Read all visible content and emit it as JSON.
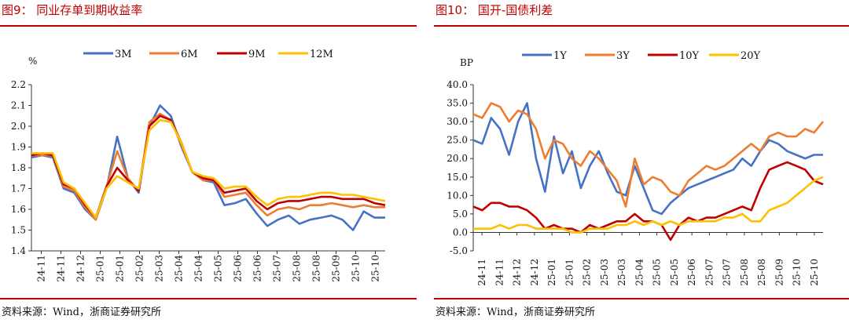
{
  "colors": {
    "accent": "#c00000",
    "s1": "#4472c4",
    "s2": "#ed7d31",
    "s3": "#c00000",
    "s4": "#ffc000"
  },
  "left": {
    "title": "图9： 同业存单到期收益率",
    "source": "资料来源：Wind，浙商证券研究所",
    "chart_data": {
      "type": "line",
      "unit": "%",
      "ylim": [
        1.4,
        2.2
      ],
      "yticks": [
        1.4,
        1.5,
        1.6,
        1.7,
        1.8,
        1.9,
        2.0,
        2.1,
        2.2
      ],
      "ytick_labels": [
        "1.4",
        "1.5",
        "1.6",
        "1.7",
        "1.8",
        "1.9",
        "2.0",
        "2.1",
        "2.2"
      ],
      "x_labels": [
        "24-11",
        "24-11",
        "24-12",
        "25-01",
        "25-01",
        "25-02",
        "25-03",
        "25-04",
        "25-04",
        "25-05",
        "25-06",
        "25-06",
        "25-07",
        "25-08",
        "25-08",
        "25-09",
        "25-10",
        "25-10"
      ],
      "series": [
        {
          "name": "3M",
          "color": "#4472c4",
          "values": [
            1.85,
            1.86,
            1.85,
            1.7,
            1.68,
            1.6,
            1.55,
            1.7,
            1.95,
            1.75,
            1.68,
            2.0,
            2.1,
            2.05,
            1.9,
            1.78,
            1.74,
            1.73,
            1.62,
            1.63,
            1.65,
            1.58,
            1.52,
            1.55,
            1.57,
            1.53,
            1.55,
            1.56,
            1.57,
            1.55,
            1.5,
            1.59,
            1.56,
            1.56
          ]
        },
        {
          "name": "6M",
          "color": "#ed7d31",
          "values": [
            1.86,
            1.86,
            1.86,
            1.71,
            1.69,
            1.61,
            1.55,
            1.71,
            1.88,
            1.75,
            1.69,
            2.02,
            2.06,
            2.03,
            1.91,
            1.78,
            1.74,
            1.74,
            1.66,
            1.67,
            1.68,
            1.62,
            1.57,
            1.6,
            1.61,
            1.6,
            1.62,
            1.62,
            1.63,
            1.62,
            1.61,
            1.62,
            1.61,
            1.61
          ]
        },
        {
          "name": "9M",
          "color": "#c00000",
          "values": [
            1.86,
            1.87,
            1.86,
            1.72,
            1.7,
            1.62,
            1.56,
            1.71,
            1.8,
            1.74,
            1.69,
            2.0,
            2.05,
            2.03,
            1.92,
            1.78,
            1.75,
            1.74,
            1.68,
            1.69,
            1.7,
            1.64,
            1.6,
            1.63,
            1.64,
            1.64,
            1.65,
            1.66,
            1.66,
            1.65,
            1.65,
            1.65,
            1.63,
            1.62
          ]
        },
        {
          "name": "12M",
          "color": "#ffc000",
          "values": [
            1.87,
            1.87,
            1.87,
            1.73,
            1.7,
            1.63,
            1.56,
            1.7,
            1.76,
            1.73,
            1.7,
            1.98,
            2.03,
            2.02,
            1.92,
            1.78,
            1.76,
            1.75,
            1.7,
            1.71,
            1.71,
            1.66,
            1.62,
            1.65,
            1.66,
            1.66,
            1.67,
            1.68,
            1.68,
            1.67,
            1.67,
            1.66,
            1.65,
            1.64
          ]
        }
      ]
    }
  },
  "right": {
    "title": "图10： 国开-国债利差",
    "source": "资料来源：Wind，浙商证券研究所",
    "chart_data": {
      "type": "line",
      "unit": "BP",
      "ylim": [
        -5,
        40
      ],
      "yticks": [
        -5,
        0,
        5,
        10,
        15,
        20,
        25,
        30,
        35,
        40
      ],
      "ytick_labels": [
        "-5.0",
        "0.0",
        "5.0",
        "10.0",
        "15.0",
        "20.0",
        "25.0",
        "30.0",
        "35.0",
        "40.0"
      ],
      "x_labels": [
        "24-11",
        "24-11",
        "24-12",
        "24-12",
        "25-01",
        "25-01",
        "25-02",
        "25-03",
        "25-03",
        "25-04",
        "25-05",
        "25-05",
        "25-06",
        "25-07",
        "25-07",
        "25-08",
        "25-08",
        "25-09",
        "25-10",
        "25-10"
      ],
      "series": [
        {
          "name": "1Y",
          "color": "#4472c4",
          "values": [
            25,
            24,
            31,
            28,
            21,
            30,
            35,
            20,
            11,
            26,
            16,
            22,
            12,
            18,
            22,
            16,
            11,
            10,
            18,
            12,
            6,
            5,
            8,
            10,
            12,
            13,
            14,
            15,
            16,
            17,
            20,
            18,
            22,
            25,
            24,
            22,
            21,
            20,
            21,
            21
          ]
        },
        {
          "name": "3Y",
          "color": "#ed7d31",
          "values": [
            32,
            31,
            35,
            34,
            30,
            33,
            32,
            28,
            20,
            25,
            24,
            20,
            18,
            22,
            20,
            17,
            14,
            7,
            20,
            13,
            15,
            14,
            11,
            10,
            14,
            16,
            18,
            17,
            18,
            20,
            22,
            24,
            22,
            26,
            27,
            26,
            26,
            28,
            27,
            30
          ]
        },
        {
          "name": "10Y",
          "color": "#c00000",
          "values": [
            7,
            6,
            8,
            8,
            7,
            7,
            6,
            4,
            1,
            2,
            1,
            1,
            0,
            2,
            1,
            2,
            3,
            3,
            5,
            3,
            3,
            2,
            -2,
            2,
            4,
            3,
            4,
            4,
            5,
            6,
            7,
            6,
            12,
            17,
            18,
            19,
            18,
            17,
            14,
            13
          ]
        },
        {
          "name": "20Y",
          "color": "#ffc000",
          "values": [
            1,
            1,
            1,
            2,
            1,
            2,
            2,
            1,
            1,
            1,
            1,
            0,
            0,
            1,
            1,
            1,
            2,
            2,
            3,
            2,
            3,
            2,
            3,
            2,
            3,
            3,
            3,
            3,
            4,
            4,
            5,
            3,
            3,
            6,
            7,
            8,
            10,
            12,
            14,
            15
          ]
        }
      ]
    }
  }
}
